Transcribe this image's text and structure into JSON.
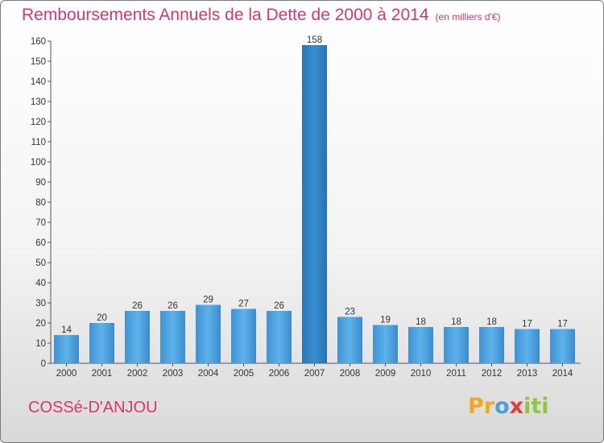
{
  "title": "Remboursements Annuels de la Dette de 2000 à 2014",
  "subtitle": "(en milliers d'€)",
  "commune": "COSSé-D'ANJOU",
  "logo": "Proxiti",
  "colors": {
    "title": "#d6366e",
    "bar_light": "#5aaee6",
    "bar_dark": "#2e7fc0"
  },
  "chart_data": {
    "type": "bar",
    "categories": [
      "2000",
      "2001",
      "2002",
      "2003",
      "2004",
      "2005",
      "2006",
      "2007",
      "2008",
      "2009",
      "2010",
      "2011",
      "2012",
      "2013",
      "2014"
    ],
    "values": [
      14,
      20,
      26,
      26,
      29,
      27,
      26,
      158,
      23,
      19,
      18,
      18,
      18,
      17,
      17
    ],
    "data_labels": [
      "14",
      "20",
      "26",
      "26",
      "29",
      "27",
      "26",
      "158",
      "23",
      "19",
      "18",
      "18",
      "18",
      "17",
      "17"
    ],
    "title": "Remboursements Annuels de la Dette de 2000 à 2014",
    "xlabel": "",
    "ylabel": "",
    "ylim": [
      0,
      160
    ],
    "yticks": [
      0,
      10,
      20,
      30,
      40,
      50,
      60,
      70,
      80,
      90,
      100,
      110,
      120,
      130,
      140,
      150,
      160
    ],
    "grid": false
  }
}
